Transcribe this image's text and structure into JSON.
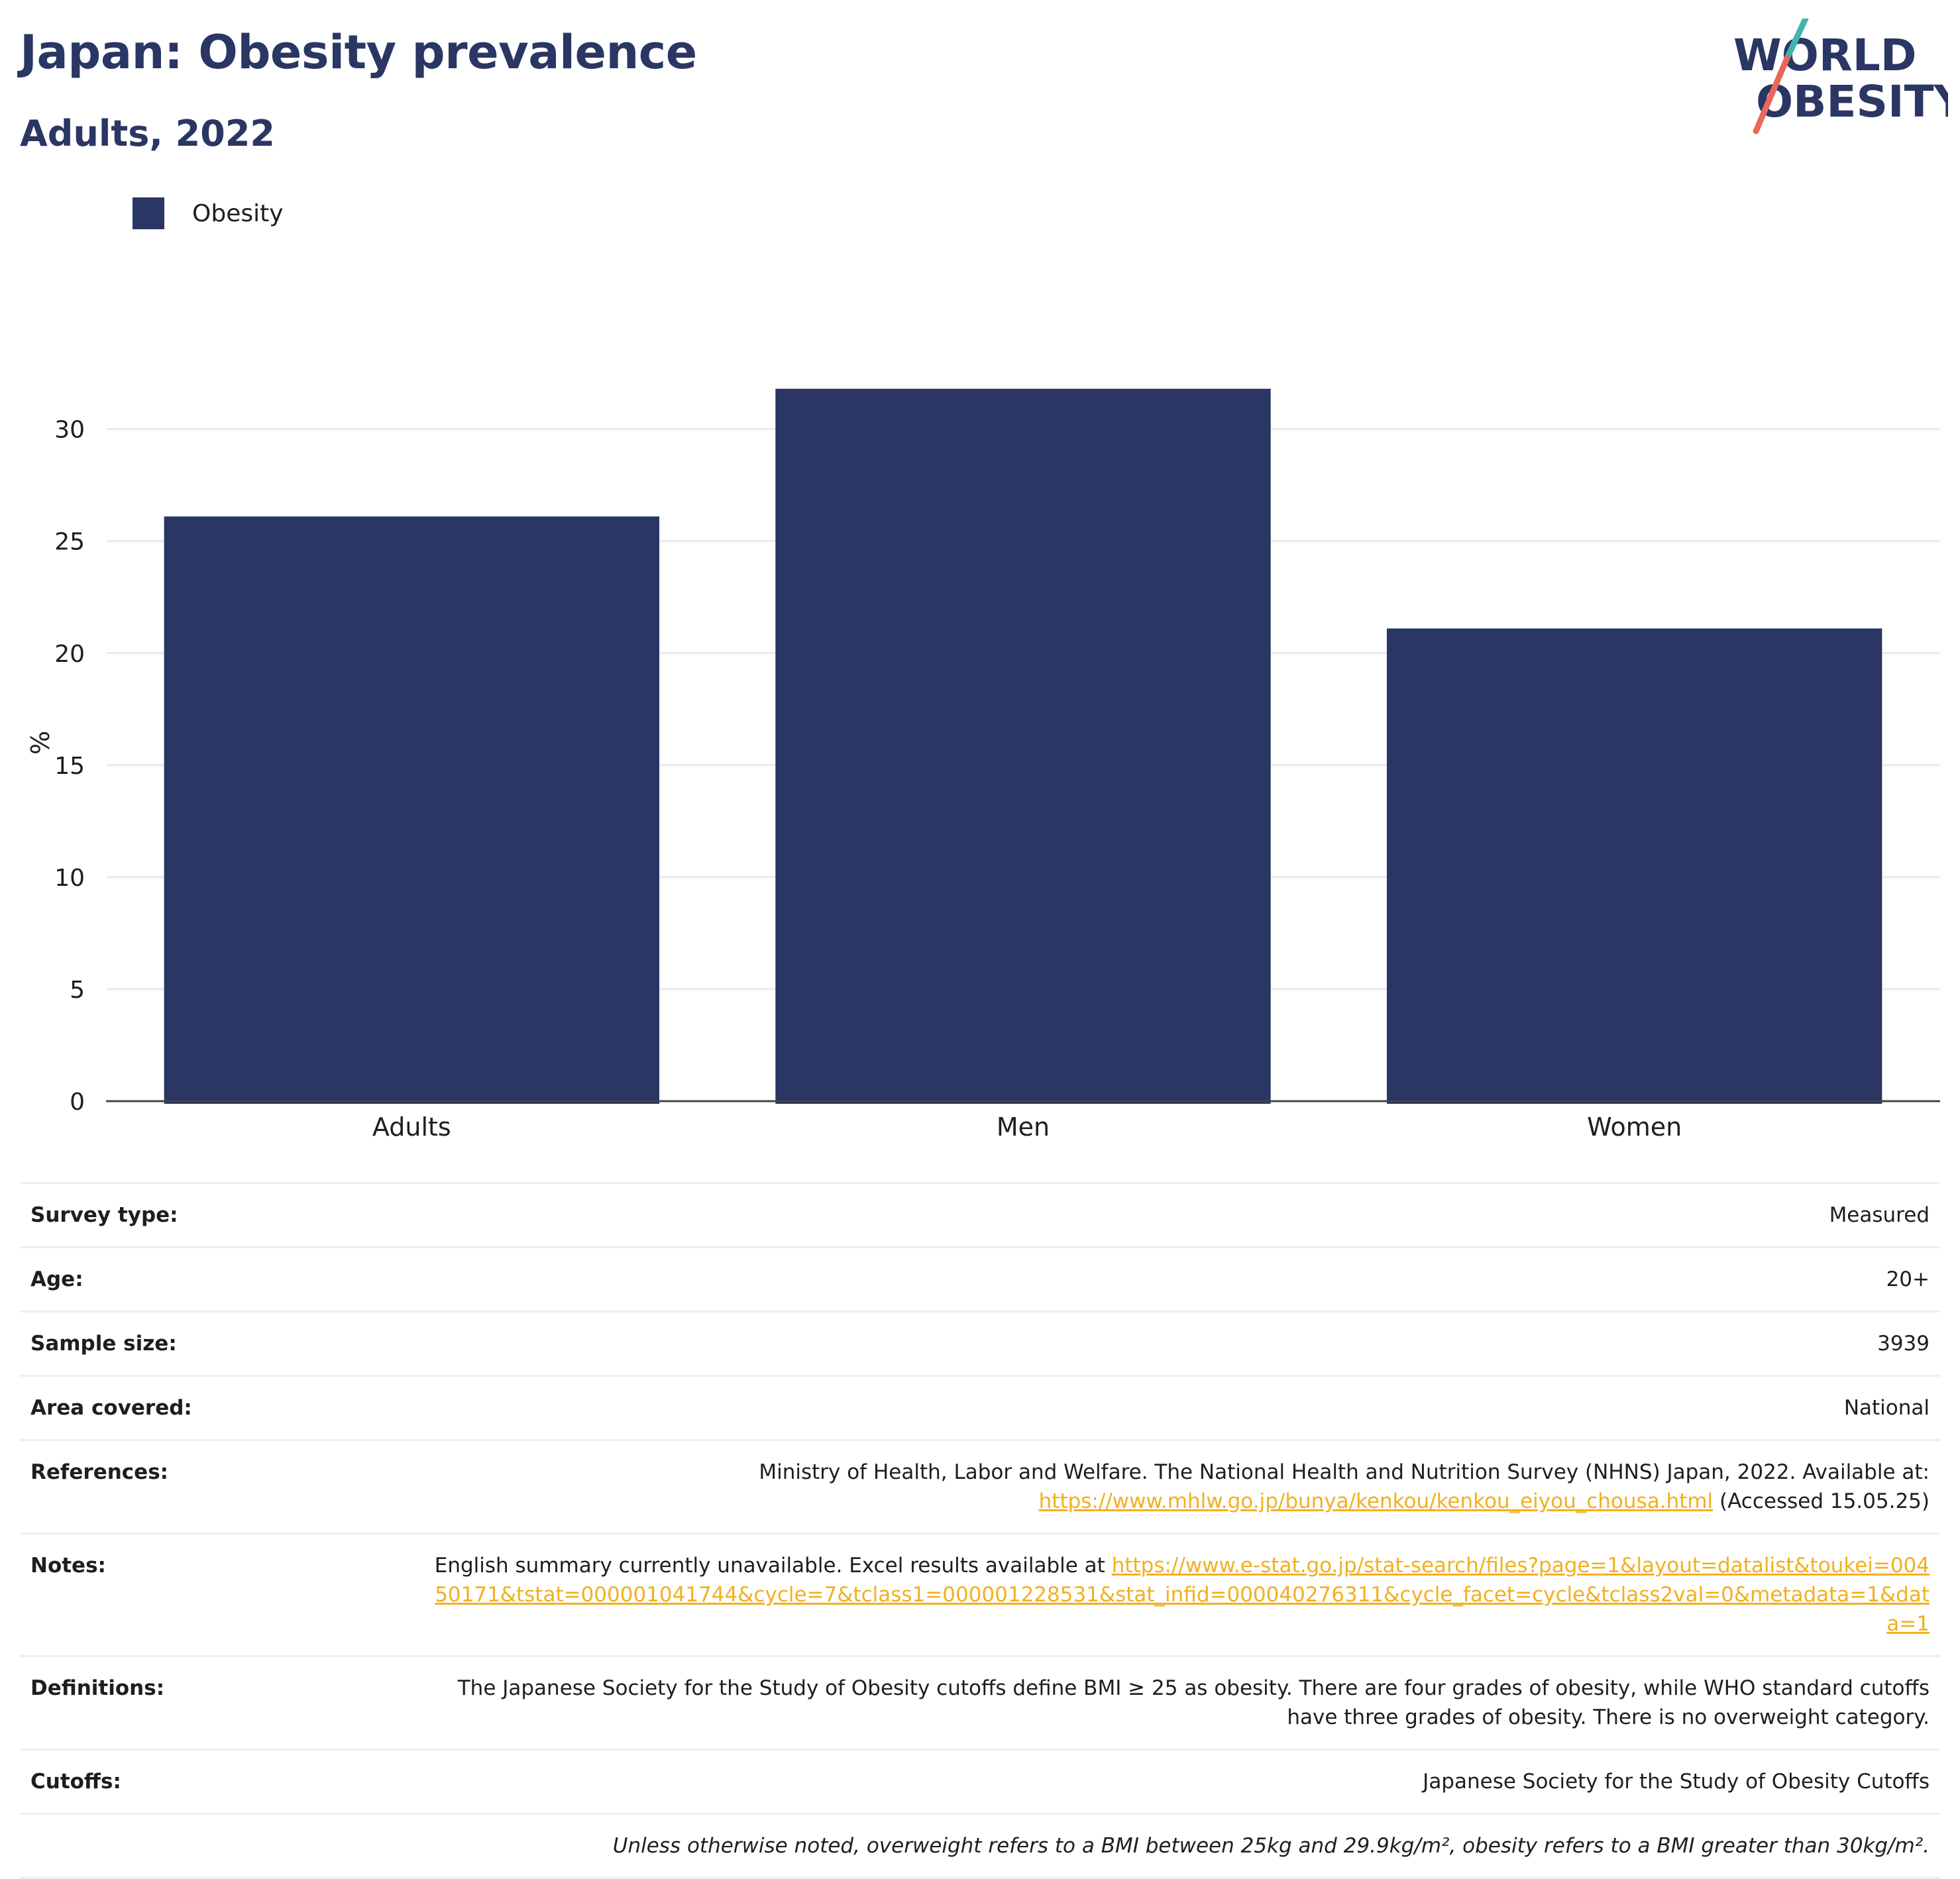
{
  "header": {
    "title": "Japan: Obesity prevalence",
    "subtitle": "Adults, 2022"
  },
  "logo": {
    "line1": "WORLD",
    "line2": "OBESITY",
    "slash_colors": [
      "#45b3ad",
      "#e8685a"
    ]
  },
  "legend": {
    "label": "Obesity",
    "color": "#2a3663"
  },
  "chart_data": {
    "type": "bar",
    "categories": [
      "Adults",
      "Men",
      "Women"
    ],
    "series": [
      {
        "name": "Obesity",
        "values": [
          26.1,
          31.8,
          21.1
        ],
        "color": "#2a3663"
      }
    ],
    "xlabel": "",
    "ylabel": "%",
    "ylim": [
      0,
      32
    ],
    "yticks": [
      0,
      5,
      10,
      15,
      20,
      25,
      30
    ],
    "grid": true
  },
  "details": {
    "survey_type_label": "Survey type:",
    "survey_type_value": "Measured",
    "age_label": "Age:",
    "age_value": "20+",
    "sample_size_label": "Sample size:",
    "sample_size_value": "3939",
    "area_label": "Area covered:",
    "area_value": "National",
    "references_label": "References:",
    "references_text": "Ministry of Health, Labor and Welfare. The National Health and Nutrition Survey (NHNS) Japan, 2022. Available at:",
    "references_link": "https://www.mhlw.go.jp/bunya/kenkou/kenkou_eiyou_chousa.html",
    "references_suffix": " (Accessed 15.05.25)",
    "notes_label": "Notes:",
    "notes_text": "English summary currently unavailable. Excel results available at ",
    "notes_link": "https://www.e-stat.go.jp/stat-search/files?page=1&layout=datalist&toukei=00450171&tstat=000001041744&cycle=7&tclass1=000001228531&stat_infid=000040276311&cycle_facet=cycle&tclass2val=0&metadata=1&data=1",
    "definitions_label": "Definitions:",
    "definitions_value": "The Japanese Society for the Study of Obesity cutoffs define BMI ≥ 25 as obesity. There are four grades of obesity, while WHO standard cutoffs have three grades of obesity. There is no overweight category.",
    "cutoffs_label": "Cutoffs:",
    "cutoffs_value": "Japanese Society for the Study of Obesity Cutoffs",
    "footnote": "Unless otherwise noted, overweight refers to a BMI between 25kg and 29.9kg/m², obesity refers to a BMI greater than 30kg/m²."
  }
}
